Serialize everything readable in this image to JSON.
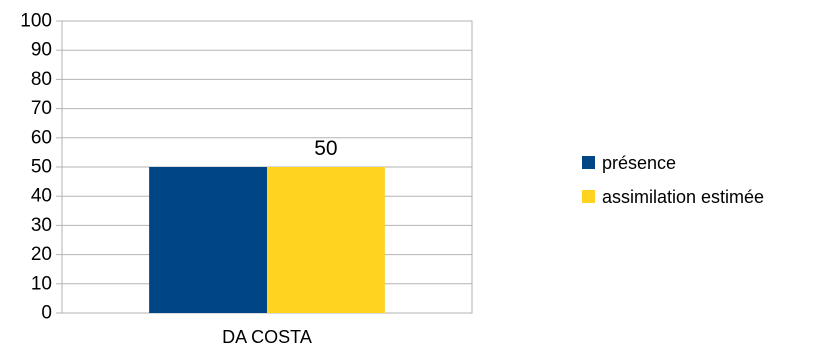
{
  "chart_data": {
    "type": "bar",
    "title": "",
    "xlabel": "",
    "ylabel": "",
    "categories": [
      "DA COSTA"
    ],
    "series": [
      {
        "name": "présence",
        "values": [
          50
        ],
        "color": "#004586"
      },
      {
        "name": "assimilation estimée",
        "values": [
          50
        ],
        "color": "#ffd320",
        "data_label": "50"
      }
    ],
    "ylim": [
      0,
      100
    ],
    "yticks": [
      "0",
      "10",
      "20",
      "30",
      "40",
      "50",
      "60",
      "70",
      "80",
      "90",
      "100"
    ],
    "grid": true,
    "legend_position": "right"
  }
}
